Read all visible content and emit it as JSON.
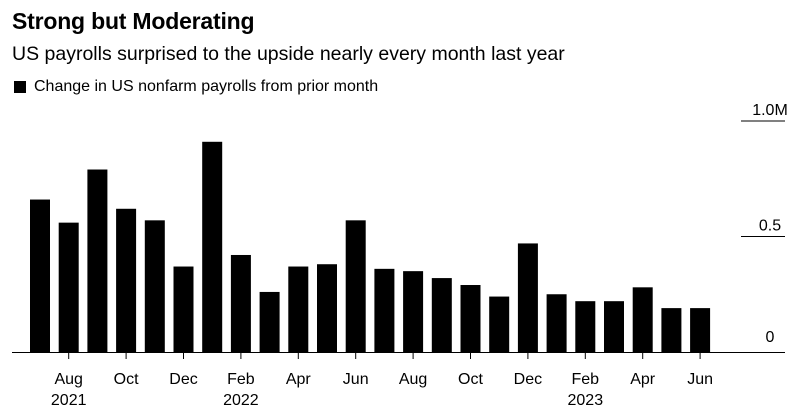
{
  "chart_data": {
    "type": "bar",
    "title": "Strong but Moderating",
    "subtitle": "US payrolls surprised to the upside nearly every month last year",
    "legend": [
      {
        "name": "Change in US nonfarm payrolls from prior month",
        "color": "#000000"
      }
    ],
    "categories": [
      "Jul 2021",
      "Aug 2021",
      "Sep 2021",
      "Oct 2021",
      "Nov 2021",
      "Dec 2021",
      "Jan 2022",
      "Feb 2022",
      "Mar 2022",
      "Apr 2022",
      "May 2022",
      "Jun 2022",
      "Jul 2022",
      "Aug 2022",
      "Sep 2022",
      "Oct 2022",
      "Nov 2022",
      "Dec 2022",
      "Jan 2023",
      "Feb 2023",
      "Mar 2023",
      "Apr 2023",
      "May 2023",
      "Jun 2023"
    ],
    "values": [
      0.66,
      0.56,
      0.79,
      0.62,
      0.57,
      0.37,
      0.91,
      0.42,
      0.26,
      0.37,
      0.38,
      0.57,
      0.36,
      0.35,
      0.32,
      0.29,
      0.24,
      0.47,
      0.25,
      0.22,
      0.22,
      0.28,
      0.19,
      0.19
    ],
    "bar_color": "#000000",
    "ylim": [
      0,
      1.0
    ],
    "yticks": [
      {
        "value": 1.0,
        "label": "1.0M"
      },
      {
        "value": 0.5,
        "label": "0.5"
      },
      {
        "value": 0,
        "label": "0"
      }
    ],
    "xticks": [
      {
        "index": 1,
        "label": "Aug",
        "year": "2021"
      },
      {
        "index": 3,
        "label": "Oct",
        "year": ""
      },
      {
        "index": 5,
        "label": "Dec",
        "year": ""
      },
      {
        "index": 7,
        "label": "Feb",
        "year": "2022"
      },
      {
        "index": 9,
        "label": "Apr",
        "year": ""
      },
      {
        "index": 11,
        "label": "Jun",
        "year": ""
      },
      {
        "index": 13,
        "label": "Aug",
        "year": ""
      },
      {
        "index": 15,
        "label": "Oct",
        "year": ""
      },
      {
        "index": 17,
        "label": "Dec",
        "year": ""
      },
      {
        "index": 19,
        "label": "Feb",
        "year": "2023"
      },
      {
        "index": 21,
        "label": "Apr",
        "year": ""
      },
      {
        "index": 23,
        "label": "Jun",
        "year": ""
      }
    ],
    "xlabel": "",
    "ylabel": "",
    "grid": false
  }
}
